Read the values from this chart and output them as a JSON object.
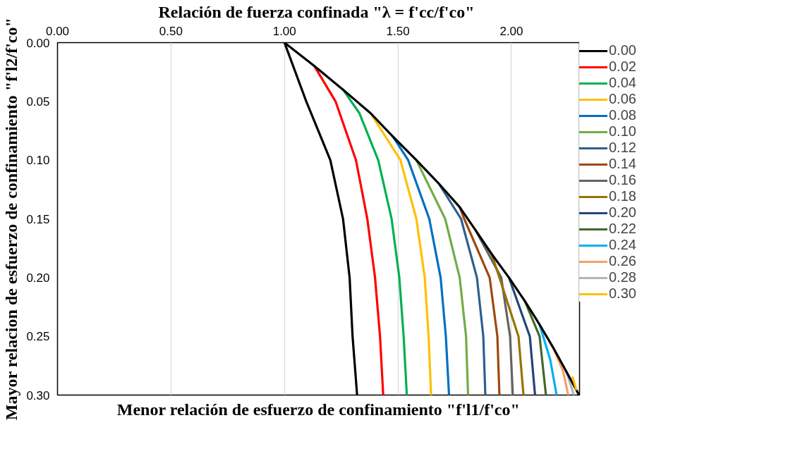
{
  "chart_data": {
    "type": "line",
    "xlabel": "Relación de fuerza confinada  \"λ = f'cc/f'co\"",
    "ylabel": "Mayor relacion de esfuerzo de confinamiento \"f'l2/f'co\"",
    "legend_title": "Menor relación de esfuerzo de confinamiento \"f'l1/f'co\"",
    "xlim": [
      0,
      2.3
    ],
    "xticks": [
      {
        "value": 0,
        "label": "0.00"
      },
      {
        "value": 0.5,
        "label": "0.50"
      },
      {
        "value": 1,
        "label": "1.00"
      },
      {
        "value": 1.5,
        "label": "1.50"
      },
      {
        "value": 2,
        "label": "2.00"
      }
    ],
    "ylim": [
      0.3,
      0
    ],
    "yticks": [
      {
        "value": 0,
        "label": "0.00"
      },
      {
        "value": 0.05,
        "label": "0.05"
      },
      {
        "value": 0.1,
        "label": "0.10"
      },
      {
        "value": 0.15,
        "label": "0.15"
      },
      {
        "value": 0.2,
        "label": "0.20"
      },
      {
        "value": 0.25,
        "label": "0.25"
      },
      {
        "value": 0.3,
        "label": "0.30"
      }
    ],
    "grid": "x",
    "legend": "right",
    "marker": "none",
    "line_style": "solid",
    "series": [
      {
        "name": "0.00",
        "color": "#000000",
        "x": [
          1.0,
          1.096,
          1.202,
          1.258,
          1.287,
          1.3,
          1.32
        ],
        "values": [
          0,
          0.05,
          0.1,
          0.15,
          0.2,
          0.25,
          0.3
        ]
      },
      {
        "name": "0.02",
        "color": "#ff0000",
        "x": [
          1.132,
          1.225,
          1.315,
          1.365,
          1.399,
          1.421,
          1.435
        ],
        "values": [
          0.02,
          0.05,
          0.1,
          0.15,
          0.2,
          0.25,
          0.3
        ]
      },
      {
        "name": "0.04",
        "color": "#00b050",
        "x": [
          1.258,
          1.33,
          1.413,
          1.472,
          1.506,
          1.525,
          1.539
        ],
        "values": [
          0.04,
          0.06,
          0.1,
          0.15,
          0.2,
          0.25,
          0.3
        ]
      },
      {
        "name": "0.06",
        "color": "#ffc000",
        "x": [
          1.379,
          1.511,
          1.581,
          1.618,
          1.635,
          1.646
        ],
        "values": [
          0.06,
          0.1,
          0.15,
          0.2,
          0.25,
          0.3
        ]
      },
      {
        "name": "0.08",
        "color": "#0070c0",
        "x": [
          1.478,
          1.545,
          1.638,
          1.688,
          1.711,
          1.725
        ],
        "values": [
          0.08,
          0.1,
          0.15,
          0.2,
          0.25,
          0.3
        ]
      },
      {
        "name": "0.10",
        "color": "#70ad47",
        "x": [
          1.581,
          1.708,
          1.772,
          1.8,
          1.809
        ],
        "values": [
          0.1,
          0.15,
          0.2,
          0.25,
          0.3
        ]
      },
      {
        "name": "0.12",
        "color": "#2f5f8f",
        "x": [
          1.68,
          1.778,
          1.848,
          1.876,
          1.885
        ],
        "values": [
          0.12,
          0.15,
          0.2,
          0.25,
          0.3
        ]
      },
      {
        "name": "0.14",
        "color": "#9e480e",
        "x": [
          1.772,
          1.792,
          1.904,
          1.938,
          1.947
        ],
        "values": [
          0.14,
          0.15,
          0.2,
          0.25,
          0.3
        ]
      },
      {
        "name": "0.16",
        "color": "#636363",
        "x": [
          1.843,
          1.955,
          1.994,
          2.006
        ],
        "values": [
          0.16,
          0.2,
          0.25,
          0.3
        ]
      },
      {
        "name": "0.18",
        "color": "#997300",
        "x": [
          1.913,
          1.947,
          2.031,
          2.053
        ],
        "values": [
          0.18,
          0.2,
          0.25,
          0.3
        ]
      },
      {
        "name": "0.20",
        "color": "#264478",
        "x": [
          1.989,
          2.081,
          2.104
        ],
        "values": [
          0.2,
          0.25,
          0.3
        ]
      },
      {
        "name": "0.22",
        "color": "#43682b",
        "x": [
          2.059,
          2.124,
          2.152
        ],
        "values": [
          0.22,
          0.25,
          0.3
        ]
      },
      {
        "name": "0.24",
        "color": "#00b0f0",
        "x": [
          2.124,
          2.171,
          2.199
        ],
        "values": [
          0.24,
          0.27,
          0.3
        ]
      },
      {
        "name": "0.26",
        "color": "#f4a06a",
        "x": [
          2.185,
          2.228,
          2.25
        ],
        "values": [
          0.26,
          0.28,
          0.3
        ]
      },
      {
        "name": "0.28",
        "color": "#b4b4b4",
        "x": [
          2.242,
          2.275
        ],
        "values": [
          0.28,
          0.3
        ]
      },
      {
        "color": "#000000",
        "x": [
          1.0,
          1.132,
          1.258,
          1.379,
          1.478,
          1.581,
          1.68,
          1.772,
          1.843,
          1.913,
          1.989,
          2.059,
          2.124,
          2.185,
          2.242,
          2.298
        ],
        "values": [
          0,
          0.02,
          0.04,
          0.06,
          0.08,
          0.1,
          0.12,
          0.14,
          0.16,
          0.18,
          0.2,
          0.22,
          0.24,
          0.26,
          0.28,
          0.3
        ]
      },
      {
        "name": "0.30",
        "color": "#ffc000",
        "x": [
          2.27,
          2.285
        ],
        "values": [
          0.285,
          0.295
        ]
      }
    ]
  }
}
